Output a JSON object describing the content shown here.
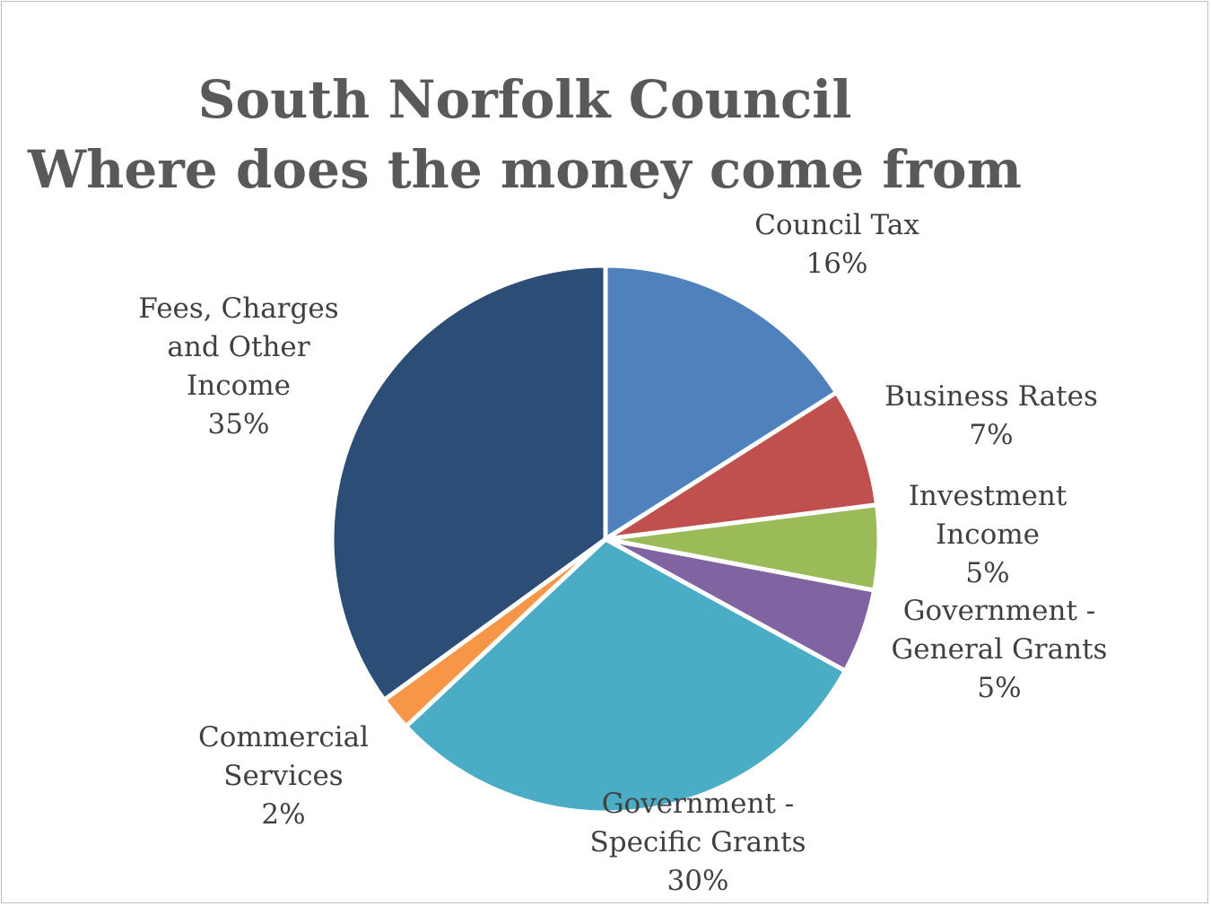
{
  "chart_data": {
    "type": "pie",
    "title_lines": [
      "South Norfolk Council",
      "Where does the money come from"
    ],
    "slices": [
      {
        "label_lines": [
          "Council Tax"
        ],
        "pct_label": "16%",
        "value": 16,
        "color": "#4F81BD"
      },
      {
        "label_lines": [
          "Business Rates"
        ],
        "pct_label": "7%",
        "value": 7,
        "color": "#C0504D"
      },
      {
        "label_lines": [
          "Investment",
          "Income"
        ],
        "pct_label": "5%",
        "value": 5,
        "color": "#9BBB59"
      },
      {
        "label_lines": [
          "Government -",
          "General Grants"
        ],
        "pct_label": "5%",
        "value": 5,
        "color": "#8064A2"
      },
      {
        "label_lines": [
          "Government -",
          "Specific Grants"
        ],
        "pct_label": "30%",
        "value": 30,
        "color": "#4BACC6"
      },
      {
        "label_lines": [
          "Commercial",
          "Services"
        ],
        "pct_label": "2%",
        "value": 2,
        "color": "#F79646"
      },
      {
        "label_lines": [
          "Fees, Charges",
          "and Other",
          "Income"
        ],
        "pct_label": "35%",
        "value": 35,
        "color": "#2C4D75"
      }
    ],
    "legend": "none"
  }
}
